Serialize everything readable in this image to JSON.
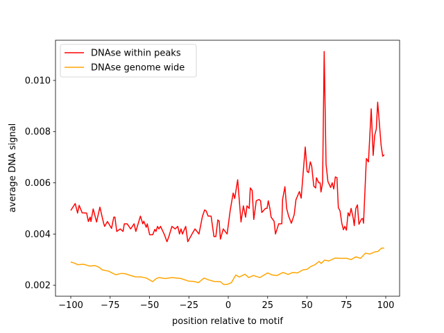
{
  "chart_data": {
    "type": "line",
    "title": "",
    "xlabel": "position relative to motif",
    "ylabel": "average DNA signal",
    "xlim": [
      -109.7,
      108.8
    ],
    "ylim": [
      0.00157,
      0.01157
    ],
    "xticks": [
      -100,
      -75,
      -50,
      -25,
      0,
      25,
      50,
      75,
      100
    ],
    "xtick_labels": [
      "−100",
      "−75",
      "−50",
      "−25",
      "0",
      "25",
      "50",
      "75",
      "100"
    ],
    "yticks": [
      0.002,
      0.004,
      0.006,
      0.008,
      0.01
    ],
    "ytick_labels": [
      "0.002",
      "0.004",
      "0.006",
      "0.008",
      "0.010"
    ],
    "grid": false,
    "legend_position": "top-left",
    "series": [
      {
        "name": "DNAse within peaks",
        "color": "#ff0000",
        "points": [
          [
            -100,
            0.00492
          ],
          [
            -97.2,
            0.00519
          ],
          [
            -95.7,
            0.00482
          ],
          [
            -94.7,
            0.00512
          ],
          [
            -92.8,
            0.00483
          ],
          [
            -89.9,
            0.00482
          ],
          [
            -88.8,
            0.00449
          ],
          [
            -87.7,
            0.00466
          ],
          [
            -87.2,
            0.00449
          ],
          [
            -85.8,
            0.00498
          ],
          [
            -83.6,
            0.00447
          ],
          [
            -81.5,
            0.00505
          ],
          [
            -79.2,
            0.00444
          ],
          [
            -78.5,
            0.0043
          ],
          [
            -76.7,
            0.00449
          ],
          [
            -74.1,
            0.00422
          ],
          [
            -72.7,
            0.00466
          ],
          [
            -72,
            0.00466
          ],
          [
            -70.8,
            0.0041
          ],
          [
            -68.6,
            0.0042
          ],
          [
            -66.8,
            0.0041
          ],
          [
            -66,
            0.0044
          ],
          [
            -64.2,
            0.0044
          ],
          [
            -62,
            0.0042
          ],
          [
            -59.8,
            0.0044
          ],
          [
            -58.7,
            0.0041
          ],
          [
            -55.8,
            0.0047
          ],
          [
            -54.3,
            0.0044
          ],
          [
            -53.6,
            0.0045
          ],
          [
            -52.1,
            0.00426
          ],
          [
            -51.4,
            0.0044
          ],
          [
            -49.9,
            0.00397
          ],
          [
            -48,
            0.00397
          ],
          [
            -46.6,
            0.00418
          ],
          [
            -45.9,
            0.0041
          ],
          [
            -44.9,
            0.0043
          ],
          [
            -44,
            0.0042
          ],
          [
            -43,
            0.0043
          ],
          [
            -40.7,
            0.004
          ],
          [
            -38.9,
            0.0037
          ],
          [
            -37.7,
            0.0039
          ],
          [
            -35.8,
            0.0043
          ],
          [
            -33.7,
            0.0042
          ],
          [
            -32.1,
            0.0043
          ],
          [
            -31,
            0.004
          ],
          [
            -30,
            0.0042
          ],
          [
            -29.1,
            0.004
          ],
          [
            -27,
            0.0043
          ],
          [
            -25.7,
            0.0037
          ],
          [
            -23,
            0.004
          ],
          [
            -21.1,
            0.0042
          ],
          [
            -18.6,
            0.004
          ],
          [
            -16.4,
            0.00469
          ],
          [
            -15,
            0.00494
          ],
          [
            -14,
            0.0049
          ],
          [
            -12.8,
            0.0047
          ],
          [
            -10.9,
            0.0047
          ],
          [
            -9.1,
            0.0039
          ],
          [
            -7.9,
            0.0039
          ],
          [
            -6.6,
            0.00455
          ],
          [
            -5.8,
            0.0045
          ],
          [
            -5,
            0.0038
          ],
          [
            -3.2,
            0.0042
          ],
          [
            -0.7,
            0.004
          ],
          [
            1.2,
            0.0049
          ],
          [
            3.1,
            0.0056
          ],
          [
            4.1,
            0.00539
          ],
          [
            6,
            0.00612
          ],
          [
            8.1,
            0.00447
          ],
          [
            9.6,
            0.0051
          ],
          [
            11,
            0.00466
          ],
          [
            11.9,
            0.0051
          ],
          [
            13.3,
            0.005
          ],
          [
            14,
            0.0058
          ],
          [
            15.2,
            0.0057
          ],
          [
            16.2,
            0.00457
          ],
          [
            17.8,
            0.0053
          ],
          [
            19.5,
            0.00535
          ],
          [
            20.5,
            0.0053
          ],
          [
            21.3,
            0.00484
          ],
          [
            23.6,
            0.005
          ],
          [
            24.6,
            0.005
          ],
          [
            25.4,
            0.0053
          ],
          [
            26.4,
            0.005
          ],
          [
            27.2,
            0.00466
          ],
          [
            29.1,
            0.0045
          ],
          [
            30,
            0.004
          ],
          [
            32,
            0.0044
          ],
          [
            34,
            0.0044
          ],
          [
            34.5,
            0.00534
          ],
          [
            36,
            0.00585
          ],
          [
            37.1,
            0.005
          ],
          [
            38.3,
            0.0047
          ],
          [
            40.1,
            0.00442
          ],
          [
            41.9,
            0.00476
          ],
          [
            43,
            0.00534
          ],
          [
            45.2,
            0.00566
          ],
          [
            46.3,
            0.0054
          ],
          [
            47.4,
            0.00625
          ],
          [
            48.9,
            0.0074
          ],
          [
            50.1,
            0.00644
          ],
          [
            51,
            0.0064
          ],
          [
            52.1,
            0.00682
          ],
          [
            53,
            0.00665
          ],
          [
            54.3,
            0.00587
          ],
          [
            55.5,
            0.0058
          ],
          [
            56,
            0.0062
          ],
          [
            57.5,
            0.006
          ],
          [
            58.3,
            0.006
          ],
          [
            58.9,
            0.00564
          ],
          [
            59.9,
            0.006
          ],
          [
            60.9,
            0.01113
          ],
          [
            62.1,
            0.00672
          ],
          [
            63.3,
            0.00605
          ],
          [
            65,
            0.00582
          ],
          [
            66,
            0.006
          ],
          [
            67,
            0.00576
          ],
          [
            68,
            0.00623
          ],
          [
            69,
            0.0062
          ],
          [
            69.9,
            0.00503
          ],
          [
            71,
            0.0049
          ],
          [
            72.1,
            0.00442
          ],
          [
            73.1,
            0.00417
          ],
          [
            74,
            0.0043
          ],
          [
            75,
            0.00415
          ],
          [
            76.1,
            0.00483
          ],
          [
            77,
            0.0047
          ],
          [
            78,
            0.005
          ],
          [
            79.4,
            0.0046
          ],
          [
            80,
            0.00433
          ],
          [
            81,
            0.005
          ],
          [
            82,
            0.00514
          ],
          [
            83,
            0.00438
          ],
          [
            84.7,
            0.0046
          ],
          [
            85.4,
            0.0046
          ],
          [
            85.9,
            0.00442
          ],
          [
            87.7,
            0.00695
          ],
          [
            89,
            0.00682
          ],
          [
            90.8,
            0.00889
          ],
          [
            92,
            0.00707
          ],
          [
            93,
            0.00785
          ],
          [
            94,
            0.0081
          ],
          [
            94.9,
            0.00915
          ],
          [
            97.1,
            0.00745
          ],
          [
            98.1,
            0.00704
          ],
          [
            99,
            0.0071
          ]
        ]
      },
      {
        "name": "DNAse genome wide",
        "color": "#ffa500",
        "points": [
          [
            -100,
            0.00291
          ],
          [
            -97,
            0.00285
          ],
          [
            -95.7,
            0.0028
          ],
          [
            -92,
            0.00282
          ],
          [
            -88,
            0.00275
          ],
          [
            -84.7,
            0.00277
          ],
          [
            -82,
            0.0027
          ],
          [
            -80,
            0.0026
          ],
          [
            -76,
            0.00255
          ],
          [
            -71.5,
            0.00241
          ],
          [
            -68,
            0.00246
          ],
          [
            -65.6,
            0.00245
          ],
          [
            -62,
            0.00238
          ],
          [
            -59,
            0.00233
          ],
          [
            -55,
            0.00232
          ],
          [
            -52,
            0.00228
          ],
          [
            -48,
            0.00214
          ],
          [
            -46,
            0.00225
          ],
          [
            -44,
            0.0023
          ],
          [
            -40,
            0.00226
          ],
          [
            -35.7,
            0.0023
          ],
          [
            -30,
            0.00226
          ],
          [
            -25.2,
            0.00216
          ],
          [
            -22,
            0.00215
          ],
          [
            -19,
            0.0021
          ],
          [
            -15.4,
            0.00228
          ],
          [
            -12,
            0.0022
          ],
          [
            -9,
            0.00215
          ],
          [
            -5,
            0.00214
          ],
          [
            -3,
            0.00203
          ],
          [
            -0.7,
            0.00203
          ],
          [
            2,
            0.0021
          ],
          [
            4.8,
            0.0024
          ],
          [
            7,
            0.00232
          ],
          [
            10.6,
            0.00243
          ],
          [
            13,
            0.0023
          ],
          [
            16,
            0.00238
          ],
          [
            20,
            0.0023
          ],
          [
            25,
            0.00248
          ],
          [
            28,
            0.0024
          ],
          [
            31,
            0.00238
          ],
          [
            34.8,
            0.0025
          ],
          [
            38,
            0.00242
          ],
          [
            41,
            0.0025
          ],
          [
            44,
            0.00248
          ],
          [
            47.4,
            0.0026
          ],
          [
            50,
            0.00262
          ],
          [
            52.4,
            0.00273
          ],
          [
            55,
            0.0028
          ],
          [
            57.7,
            0.00293
          ],
          [
            59,
            0.00285
          ],
          [
            61.2,
            0.00298
          ],
          [
            64,
            0.00295
          ],
          [
            67.8,
            0.00306
          ],
          [
            71,
            0.00305
          ],
          [
            75.3,
            0.00305
          ],
          [
            78,
            0.003
          ],
          [
            81,
            0.00311
          ],
          [
            84,
            0.00305
          ],
          [
            87.1,
            0.00325
          ],
          [
            90,
            0.00322
          ],
          [
            93,
            0.0033
          ],
          [
            95,
            0.00332
          ],
          [
            97.4,
            0.00345
          ],
          [
            99,
            0.00345
          ]
        ]
      }
    ]
  }
}
